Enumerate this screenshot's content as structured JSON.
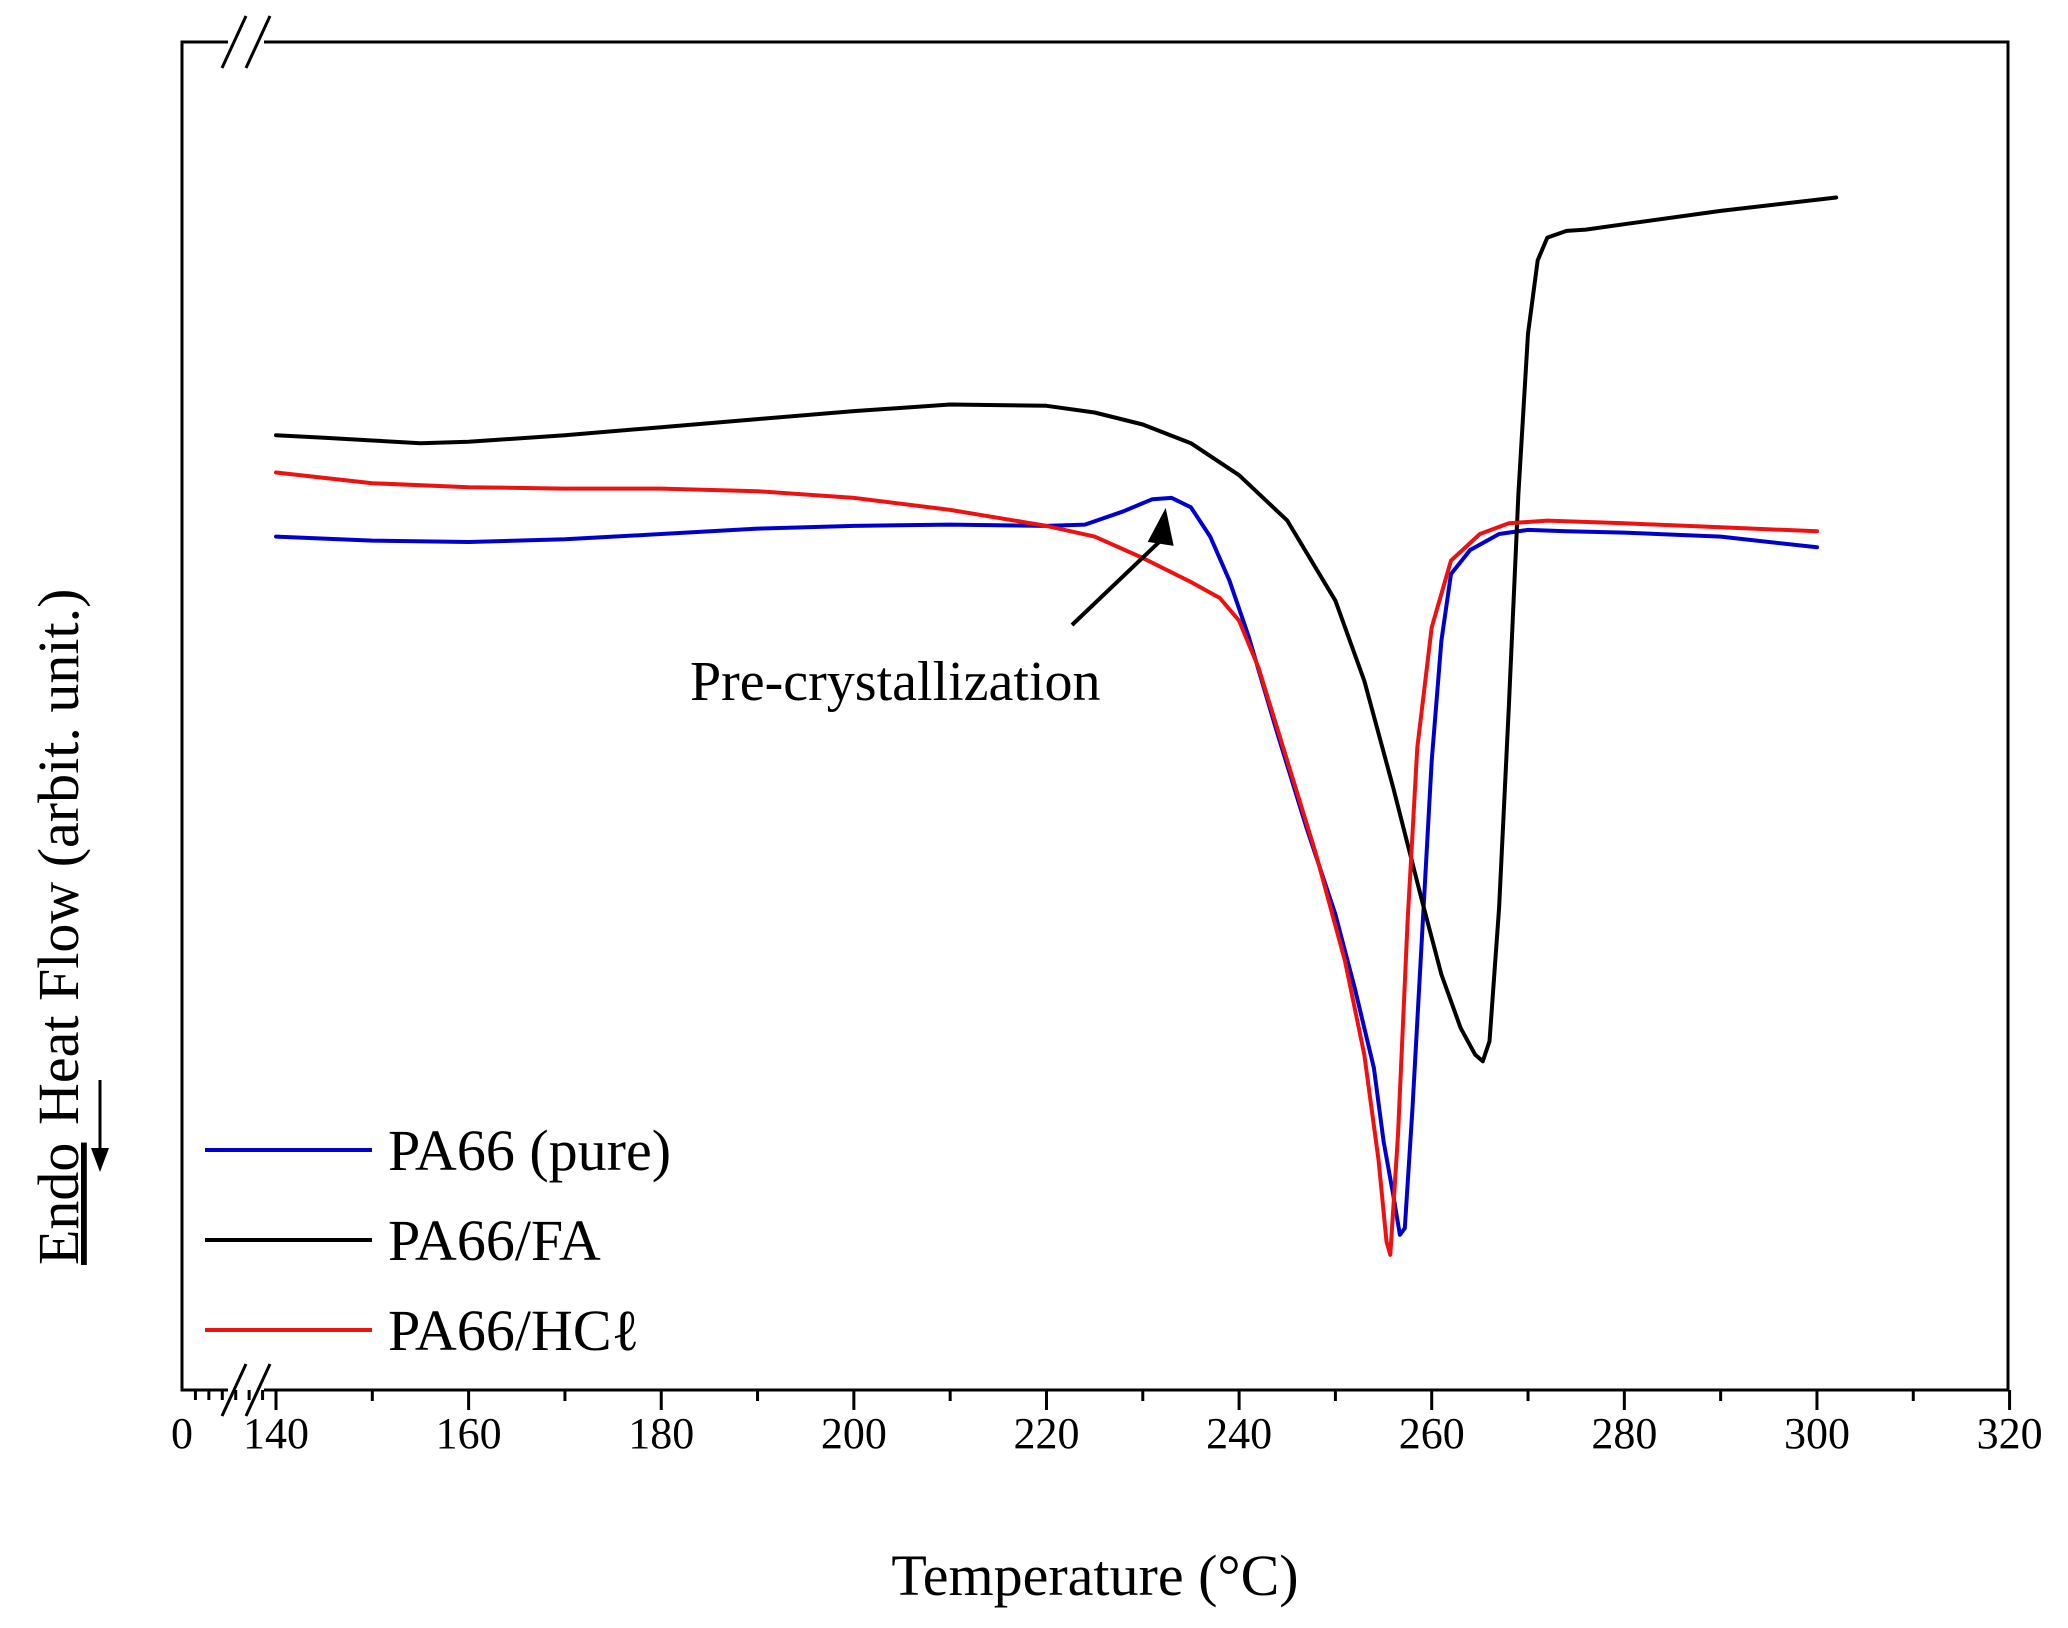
{
  "chart_data": {
    "type": "line",
    "xlabel": "Temperature (°C)",
    "ylabel": "Heat Flow (arbit. unit.)",
    "ylabel_prefix": "Endo",
    "xlim": [
      0,
      320
    ],
    "x_axis_break": [
      0,
      140
    ],
    "x_ticks": [
      0,
      140,
      160,
      180,
      200,
      220,
      240,
      260,
      280,
      300,
      320
    ],
    "x_tick_labels": [
      "0",
      "140",
      "160",
      "180",
      "200",
      "220",
      "240",
      "260",
      "280",
      "300",
      "320"
    ],
    "y_ticks_shown": false,
    "grid": false,
    "legend_position": "bottom-left",
    "annotation": {
      "text": "Pre-crystallization",
      "points_to": {
        "x": 233,
        "series": "PA66 (pure)"
      }
    },
    "series": [
      {
        "name": "PA66 (pure)",
        "color": "#0000cc",
        "points": [
          [
            140,
            0.628
          ],
          [
            150,
            0.625
          ],
          [
            160,
            0.624
          ],
          [
            170,
            0.626
          ],
          [
            180,
            0.63
          ],
          [
            190,
            0.634
          ],
          [
            200,
            0.636
          ],
          [
            210,
            0.637
          ],
          [
            220,
            0.636
          ],
          [
            224,
            0.637
          ],
          [
            228,
            0.647
          ],
          [
            231,
            0.656
          ],
          [
            233,
            0.657
          ],
          [
            235,
            0.65
          ],
          [
            237,
            0.628
          ],
          [
            239,
            0.595
          ],
          [
            241,
            0.553
          ],
          [
            244,
            0.48
          ],
          [
            247,
            0.41
          ],
          [
            250,
            0.345
          ],
          [
            252,
            0.29
          ],
          [
            254,
            0.23
          ],
          [
            255,
            0.175
          ],
          [
            256,
            0.135
          ],
          [
            256.7,
            0.105
          ],
          [
            257.2,
            0.11
          ],
          [
            258,
            0.2
          ],
          [
            259,
            0.33
          ],
          [
            260,
            0.46
          ],
          [
            261,
            0.55
          ],
          [
            262,
            0.6
          ],
          [
            264,
            0.618
          ],
          [
            267,
            0.63
          ],
          [
            270,
            0.633
          ],
          [
            274,
            0.632
          ],
          [
            280,
            0.631
          ],
          [
            290,
            0.628
          ],
          [
            300,
            0.62
          ]
        ]
      },
      {
        "name": "PA66/FA",
        "color": "#000000",
        "points": [
          [
            140,
            0.704
          ],
          [
            145,
            0.702
          ],
          [
            150,
            0.7
          ],
          [
            155,
            0.698
          ],
          [
            160,
            0.699
          ],
          [
            170,
            0.704
          ],
          [
            180,
            0.71
          ],
          [
            190,
            0.716
          ],
          [
            200,
            0.722
          ],
          [
            210,
            0.727
          ],
          [
            220,
            0.726
          ],
          [
            225,
            0.721
          ],
          [
            230,
            0.712
          ],
          [
            235,
            0.698
          ],
          [
            240,
            0.674
          ],
          [
            245,
            0.64
          ],
          [
            250,
            0.58
          ],
          [
            253,
            0.52
          ],
          [
            256,
            0.44
          ],
          [
            259,
            0.355
          ],
          [
            261,
            0.3
          ],
          [
            263,
            0.26
          ],
          [
            264.5,
            0.24
          ],
          [
            265.3,
            0.235
          ],
          [
            266,
            0.25
          ],
          [
            267,
            0.35
          ],
          [
            268,
            0.5
          ],
          [
            269,
            0.66
          ],
          [
            270,
            0.78
          ],
          [
            271,
            0.835
          ],
          [
            272,
            0.852
          ],
          [
            274,
            0.857
          ],
          [
            276,
            0.858
          ],
          [
            280,
            0.862
          ],
          [
            290,
            0.872
          ],
          [
            302,
            0.882
          ]
        ]
      },
      {
        "name": "PA66/HCℓ",
        "color": "#ee1111",
        "points": [
          [
            140,
            0.676
          ],
          [
            150,
            0.668
          ],
          [
            160,
            0.665
          ],
          [
            170,
            0.664
          ],
          [
            180,
            0.664
          ],
          [
            190,
            0.662
          ],
          [
            200,
            0.657
          ],
          [
            210,
            0.648
          ],
          [
            220,
            0.636
          ],
          [
            225,
            0.628
          ],
          [
            230,
            0.612
          ],
          [
            235,
            0.594
          ],
          [
            238,
            0.582
          ],
          [
            240,
            0.565
          ],
          [
            242,
            0.53
          ],
          [
            245,
            0.46
          ],
          [
            248,
            0.39
          ],
          [
            251,
            0.31
          ],
          [
            253,
            0.24
          ],
          [
            254.5,
            0.16
          ],
          [
            255.3,
            0.1
          ],
          [
            255.7,
            0.09
          ],
          [
            256.5,
            0.18
          ],
          [
            257.5,
            0.34
          ],
          [
            258.5,
            0.47
          ],
          [
            260,
            0.56
          ],
          [
            262,
            0.61
          ],
          [
            265,
            0.63
          ],
          [
            268,
            0.638
          ],
          [
            272,
            0.64
          ],
          [
            280,
            0.638
          ],
          [
            290,
            0.635
          ],
          [
            300,
            0.632
          ]
        ]
      }
    ]
  }
}
